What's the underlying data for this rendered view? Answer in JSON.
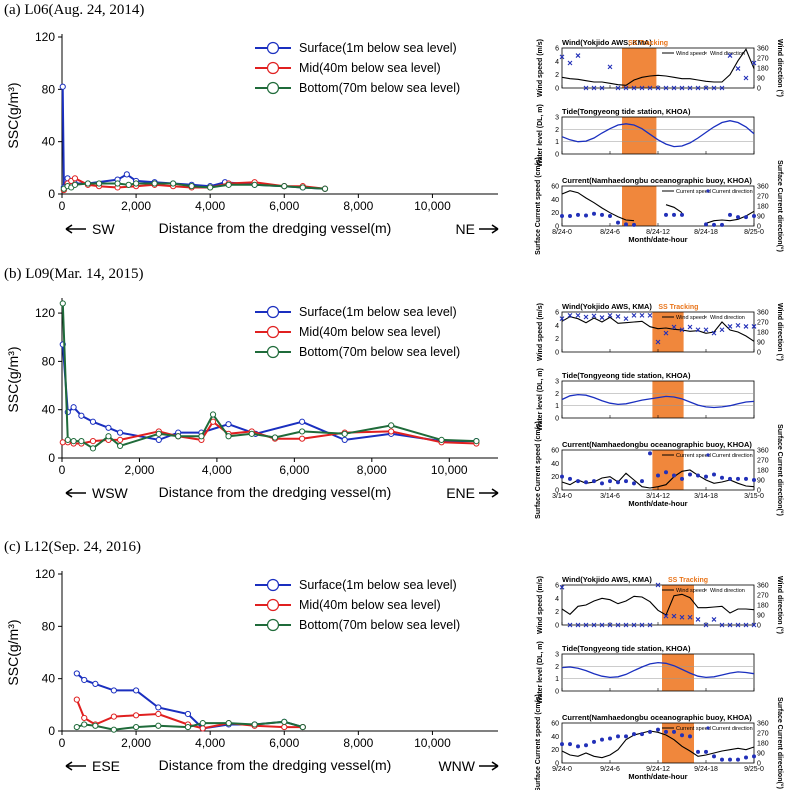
{
  "panels": [
    {
      "title": "(a) L06(Aug. 24, 2014)",
      "dir_left": "SW",
      "dir_right": "NE",
      "chart_data": {
        "type": "line",
        "xlabel": "Distance from the dredging vessel(m)",
        "ylabel": "SSC(g/m³)",
        "xlim": [
          0,
          11500
        ],
        "ylim": [
          0,
          120
        ],
        "xticks": [
          0,
          2000,
          4000,
          6000,
          8000,
          10000
        ],
        "xtick_labels": [
          "0",
          "2,000",
          "4,000",
          "6,000",
          "8,000",
          "10,000"
        ],
        "yticks": [
          0,
          40,
          80,
          120
        ],
        "series": [
          {
            "name": "Surface(1m below sea level)",
            "color": "#1a2fbf",
            "x": [
              20,
              50,
              150,
              250,
              350,
              700,
              1500,
              1750,
              2000,
              2500,
              3000,
              3500,
              4000,
              4400,
              5200,
              6000,
              6500,
              7100
            ],
            "y": [
              82,
              5,
              12,
              10,
              8,
              8,
              11,
              15,
              10,
              9,
              8,
              7,
              6,
              9,
              7,
              6,
              5,
              4
            ]
          },
          {
            "name": "Mid(40m below sea level)",
            "color": "#e02020",
            "x": [
              50,
              150,
              250,
              350,
              700,
              1000,
              1500,
              2000,
              2500,
              3000,
              3500,
              4000,
              4500,
              5200,
              6000,
              6500,
              7100
            ],
            "y": [
              3,
              8,
              10,
              12,
              7,
              6,
              5,
              6,
              7,
              6,
              5,
              5,
              8,
              9,
              6,
              6,
              4
            ]
          },
          {
            "name": "Bottom(70m below sea level)",
            "color": "#1f6b3a",
            "x": [
              50,
              150,
              250,
              350,
              700,
              1000,
              1500,
              1800,
              2000,
              2500,
              3000,
              3500,
              4000,
              4500,
              5200,
              6000,
              6500,
              7100
            ],
            "y": [
              4,
              6,
              5,
              7,
              8,
              8,
              8,
              7,
              8,
              8,
              8,
              6,
              5,
              7,
              7,
              6,
              5,
              4
            ]
          }
        ]
      },
      "side": {
        "wind_title": "Wind(Yokjido AWS, KMA)",
        "wind_ylabel": "Wind speed (m/s)",
        "wind_rlabel": "Wind direction (°)",
        "wind_yticks": [
          "0",
          "2",
          "4",
          "6"
        ],
        "wind_rticks": [
          "0",
          "90",
          "180",
          "270",
          "360"
        ],
        "wind_leg1": "Wind speed",
        "wind_leg2": "Wind direction",
        "tracking_label": "SS Tracking",
        "tide_title": "Tide(Tongyeong tide station, KHOA)",
        "tide_ylabel": "Water level (DL, m)",
        "tide_yticks": [
          "0",
          "1",
          "2",
          "3"
        ],
        "cur_title": "Current(Namhaedongbu oceanographic buoy, KHOA)",
        "cur_ylabel": "Surface Current speed (cm/s)",
        "cur_rlabel": "Surface Current direction(°)",
        "cur_yticks": [
          "0",
          "20",
          "40",
          "60"
        ],
        "cur_rticks": [
          "0",
          "90",
          "180",
          "270",
          "360"
        ],
        "cur_leg1": "Current speed",
        "cur_leg2": "Current direction",
        "time_labels": [
          "8/24-0",
          "8/24-6",
          "8/24-12",
          "8/24-18",
          "8/25-0"
        ],
        "time_xlabel": "Month/date-hour",
        "tracking_range": [
          7.5,
          11.8
        ],
        "wind_speed": [
          1.6,
          1.4,
          1.3,
          1.1,
          0.9,
          0.9,
          0.7,
          0.5,
          0.4,
          1.2,
          1.6,
          1.8,
          1.9,
          1.8,
          1.6,
          1.4,
          1.4,
          1.2,
          1.0,
          0.9,
          0.9,
          2.0,
          4.1,
          5.8,
          2.9
        ],
        "wind_dir": [
          280,
          225,
          292,
          0,
          0,
          0,
          190,
          0,
          0,
          0,
          0,
          0,
          0,
          0,
          0,
          0,
          0,
          0,
          0,
          0,
          0,
          292,
          175,
          90,
          225
        ],
        "tide": [
          1.4,
          1.15,
          1.0,
          1.05,
          1.3,
          1.7,
          2.05,
          2.35,
          2.45,
          2.35,
          2.05,
          1.6,
          1.15,
          0.8,
          0.6,
          0.65,
          0.9,
          1.3,
          1.75,
          2.2,
          2.55,
          2.7,
          2.55,
          2.2,
          1.65
        ],
        "cur_speed": [
          48,
          53,
          50,
          42,
          35,
          27,
          20,
          14,
          9,
          8,
          null,
          null,
          null,
          32,
          28,
          20,
          null,
          null,
          4,
          8,
          9,
          8,
          10,
          15,
          22
        ],
        "cur_dir": [
          90,
          90,
          100,
          95,
          110,
          100,
          90,
          30,
          15,
          10,
          null,
          null,
          null,
          100,
          100,
          100,
          null,
          null,
          15,
          10,
          10,
          100,
          80,
          80,
          90
        ]
      }
    },
    {
      "title": "(b) L09(Mar. 14, 2015)",
      "dir_left": "WSW",
      "dir_right": "ENE",
      "chart_data": {
        "type": "line",
        "xlabel": "Distance from the dredging vessel(m)",
        "ylabel": "SSC(g/m³)",
        "xlim": [
          0,
          11000
        ],
        "ylim": [
          0,
          130
        ],
        "xticks": [
          0,
          2000,
          4000,
          6000,
          8000,
          10000
        ],
        "xtick_labels": [
          "0",
          "2,000",
          "4,000",
          "6,000",
          "8,000",
          "10,000"
        ],
        "yticks": [
          0,
          40,
          80,
          120
        ],
        "series": [
          {
            "name": "Surface(1m below sea level)",
            "color": "#1a2fbf",
            "x": [
              20,
              150,
              300,
              500,
              800,
              1200,
              1500,
              2500,
              3000,
              3600,
              4300,
              5000,
              6200,
              7300,
              8500,
              9800,
              10700
            ],
            "y": [
              94,
              38,
              42,
              35,
              30,
              25,
              21,
              15,
              21,
              21,
              28,
              20,
              30,
              15,
              20,
              14,
              14
            ]
          },
          {
            "name": "Mid(40m below sea level)",
            "color": "#e02020",
            "x": [
              20,
              150,
              300,
              500,
              800,
              1200,
              1500,
              2500,
              3000,
              3600,
              3900,
              4300,
              4900,
              5500,
              6200,
              7300,
              8500,
              9800,
              10700
            ],
            "y": [
              13,
              13,
              12,
              12,
              14,
              15,
              15,
              22,
              18,
              15,
              30,
              20,
              22,
              16,
              16,
              21,
              22,
              13,
              12
            ]
          },
          {
            "name": "Bottom(70m below sea level)",
            "color": "#1f6b3a",
            "x": [
              20,
              150,
              300,
              500,
              800,
              1200,
              1500,
              2500,
              3000,
              3600,
              3900,
              4300,
              4900,
              5500,
              6200,
              7300,
              8500,
              9800,
              10700
            ],
            "y": [
              128,
              15,
              14,
              14,
              8,
              18,
              10,
              20,
              18,
              18,
              36,
              18,
              20,
              17,
              22,
              20,
              27,
              15,
              14
            ]
          }
        ]
      },
      "side": {
        "wind_title": "Wind(Yokjido AWS, KMA)",
        "wind_ylabel": "Wind speed (m/s)",
        "wind_rlabel": "Wind direction (°)",
        "wind_yticks": [
          "0",
          "2",
          "4",
          "6"
        ],
        "wind_rticks": [
          "0",
          "90",
          "180",
          "270",
          "360"
        ],
        "wind_leg1": "Wind speed",
        "wind_leg2": "Wind direction",
        "tracking_label": "SS Tracking",
        "tide_title": "Tide(Tongyeong tide station, KHOA)",
        "tide_ylabel": "Water level (DL, m)",
        "tide_yticks": [
          "0",
          "1",
          "2",
          "3"
        ],
        "cur_title": "Current(Namhaedongbu oceanographic buoy, KHOA)",
        "cur_ylabel": "Surface Current speed (cm/s)",
        "cur_rlabel": "Surface Current direction(°)",
        "cur_yticks": [
          "0",
          "20",
          "40",
          "60"
        ],
        "cur_rticks": [
          "0",
          "90",
          "180",
          "270",
          "360"
        ],
        "cur_leg1": "Current speed",
        "cur_leg2": "Current direction",
        "time_labels": [
          "3/14-0",
          "3/14-6",
          "3/14-12",
          "3/14-18",
          "3/15-0"
        ],
        "time_xlabel": "Month/date-hour",
        "tracking_range": [
          11.3,
          15.2
        ],
        "wind_speed": [
          4.6,
          5.3,
          5.0,
          4.4,
          5.1,
          4.5,
          5.2,
          4.3,
          4.4,
          4.5,
          4.6,
          3.8,
          3.5,
          3.6,
          3.4,
          3.3,
          3.1,
          3.2,
          2.8,
          3.0,
          4.5,
          3.3,
          3.0,
          2.4,
          1.6
        ],
        "wind_dir": [
          300,
          330,
          330,
          315,
          325,
          310,
          330,
          320,
          300,
          330,
          330,
          330,
          90,
          170,
          225,
          200,
          225,
          200,
          200,
          170,
          200,
          230,
          240,
          230,
          230
        ],
        "tide": [
          1.5,
          1.8,
          1.9,
          1.85,
          1.65,
          1.4,
          1.2,
          1.1,
          1.15,
          1.3,
          1.45,
          1.55,
          1.65,
          1.75,
          1.7,
          1.55,
          1.3,
          1.05,
          0.9,
          0.85,
          0.9,
          1.0,
          1.15,
          1.3,
          1.35
        ],
        "cur_speed": [
          12,
          8,
          15,
          10,
          12,
          18,
          20,
          12,
          25,
          15,
          5,
          3,
          5,
          8,
          20,
          28,
          30,
          22,
          15,
          10,
          12,
          15,
          10,
          6,
          5
        ],
        "cur_dir": [
          120,
          100,
          80,
          70,
          80,
          60,
          80,
          70,
          80,
          60,
          80,
          330,
          130,
          160,
          130,
          100,
          140,
          130,
          120,
          140,
          110,
          100,
          100,
          100,
          90
        ]
      }
    },
    {
      "title": "(c) L12(Sep. 24, 2016)",
      "dir_left": "ESE",
      "dir_right": "WNW",
      "chart_data": {
        "type": "line",
        "xlabel": "Distance from the dredging vessel(m)",
        "ylabel": "SSC(g/m³)",
        "xlim": [
          0,
          11500
        ],
        "ylim": [
          0,
          120
        ],
        "xticks": [
          0,
          2000,
          4000,
          6000,
          8000,
          10000
        ],
        "xtick_labels": [
          "0",
          "2,000",
          "4,000",
          "6,000",
          "8,000",
          "10,000"
        ],
        "yticks": [
          0,
          40,
          80,
          120
        ],
        "series": [
          {
            "name": "Surface(1m below sea level)",
            "color": "#1a2fbf",
            "x": [
              400,
              600,
              900,
              1400,
              2000,
              2600,
              3400,
              3800,
              4500,
              5200,
              6000,
              6500
            ],
            "y": [
              44,
              39,
              36,
              31,
              31,
              18,
              13,
              2,
              5,
              5,
              7,
              3
            ]
          },
          {
            "name": "Mid(40m below sea level)",
            "color": "#e02020",
            "x": [
              400,
              600,
              900,
              1400,
              2000,
              2600,
              3400,
              3800,
              4500,
              5200,
              6000,
              6500
            ],
            "y": [
              24,
              10,
              5,
              11,
              12,
              13,
              5,
              2,
              6,
              4,
              3,
              3
            ]
          },
          {
            "name": "Bottom(70m below sea level)",
            "color": "#1f6b3a",
            "x": [
              400,
              600,
              900,
              1400,
              2000,
              2600,
              3400,
              3800,
              4500,
              5200,
              6000,
              6500
            ],
            "y": [
              3,
              5,
              4,
              1,
              3,
              4,
              3,
              6,
              6,
              5,
              7,
              3
            ]
          }
        ]
      },
      "side": {
        "wind_title": "Wind(Yokjido AWS, KMA)",
        "wind_ylabel": "Wind speed (m/s)",
        "wind_rlabel": "Wind direction (°)",
        "wind_yticks": [
          "0",
          "2",
          "4",
          "6"
        ],
        "wind_rticks": [
          "0",
          "90",
          "180",
          "270",
          "360"
        ],
        "wind_leg1": "Wind speed",
        "wind_leg2": "Wind direction",
        "tracking_label": "SS Tracking",
        "tide_title": "Tide(Tongyeong tide station, KHOA)",
        "tide_ylabel": "Water level (DL, m)",
        "tide_yticks": [
          "0",
          "1",
          "2",
          "3"
        ],
        "cur_title": "Current(Namhaedongbu oceanographic buoy, KHOA)",
        "cur_ylabel": "Surface Current speed (cm/s)",
        "cur_rlabel": "Surface Current direction(°)",
        "cur_yticks": [
          "0",
          "20",
          "40",
          "60"
        ],
        "cur_rticks": [
          "0",
          "90",
          "180",
          "270",
          "360"
        ],
        "cur_leg1": "Current speed",
        "cur_leg2": "Current direction",
        "time_labels": [
          "9/24-0",
          "9/24-6",
          "9/24-12",
          "9/24-18",
          "9/25-0"
        ],
        "time_xlabel": "Month/date-hour",
        "tracking_range": [
          12.5,
          16.5
        ],
        "wind_speed": [
          2.4,
          1.6,
          2.8,
          3.0,
          3.6,
          4.0,
          3.8,
          3.2,
          3.6,
          4.3,
          4.2,
          3.5,
          2.2,
          1.5,
          4.4,
          4.6,
          4.1,
          2.6,
          2.6,
          2.7,
          2.8,
          1.8,
          2.4,
          2.4,
          2.3
        ],
        "wind_dir": [
          340,
          0,
          0,
          0,
          0,
          0,
          0,
          0,
          0,
          0,
          0,
          0,
          360,
          80,
          80,
          70,
          70,
          50,
          0,
          50,
          0,
          0,
          0,
          0,
          0
        ],
        "tide": [
          1.9,
          1.95,
          1.85,
          1.65,
          1.4,
          1.2,
          1.1,
          1.15,
          1.35,
          1.65,
          1.95,
          2.2,
          2.3,
          2.25,
          2.05,
          1.75,
          1.45,
          1.2,
          1.1,
          1.15,
          1.3,
          1.45,
          1.55,
          1.5,
          1.4
        ],
        "cur_speed": [
          18,
          12,
          10,
          15,
          10,
          8,
          12,
          20,
          35,
          42,
          45,
          48,
          46,
          42,
          35,
          25,
          18,
          10,
          12,
          15,
          18,
          20,
          22,
          20,
          24
        ],
        "cur_dir": [
          170,
          170,
          150,
          160,
          190,
          210,
          220,
          240,
          240,
          260,
          260,
          280,
          300,
          280,
          280,
          250,
          240,
          100,
          100,
          60,
          30,
          30,
          30,
          50,
          60
        ]
      }
    }
  ]
}
